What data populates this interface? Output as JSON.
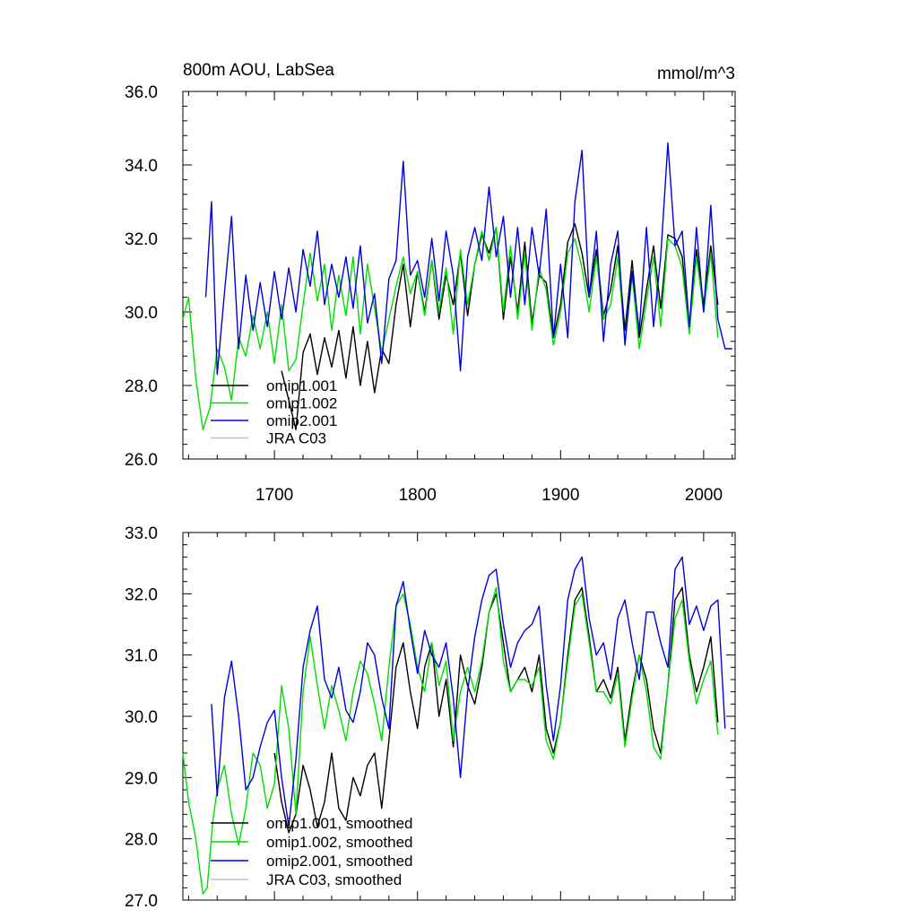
{
  "chart_data": [
    {
      "type": "line",
      "title": "800m AOU, LabSea",
      "units": "mmol/m^3",
      "xlim": [
        1636,
        2022
      ],
      "ylim": [
        26.0,
        36.0
      ],
      "xticks": [
        1700,
        1800,
        1900,
        2000
      ],
      "xtick_labels": [
        "1700",
        "1800",
        "1900",
        "2000"
      ],
      "yticks": [
        26,
        28,
        30,
        32,
        34,
        36
      ],
      "ytick_labels": [
        "26.0",
        "28.0",
        "30.0",
        "32.0",
        "34.0",
        "36.0"
      ],
      "legend": [
        "omip1.001",
        "omip1.002",
        "omip2.001",
        "JRA C03"
      ],
      "series": [
        {
          "name": "omip1.001",
          "color": "#000000",
          "x": [
            1652,
            1660,
            1670,
            1680,
            1690,
            1700,
            1705,
            1710,
            1715,
            1720,
            1725,
            1730,
            1735,
            1740,
            1745,
            1750,
            1755,
            1760,
            1765,
            1770,
            1775,
            1780,
            1785,
            1790,
            1795,
            1800,
            1805,
            1810,
            1815,
            1820,
            1825,
            1830,
            1835,
            1840,
            1845,
            1850,
            1855,
            1860,
            1865,
            1870,
            1875,
            1880,
            1885,
            1890,
            1895,
            1900,
            1905,
            1910,
            1915,
            1920,
            1925,
            1930,
            1935,
            1940,
            1945,
            1950,
            1955,
            1960,
            1965,
            1970,
            1975,
            1980,
            1985,
            1990,
            1995,
            2000,
            2005,
            2010
          ],
          "values": [
            null,
            null,
            null,
            null,
            null,
            null,
            28.4,
            27.6,
            26.8,
            28.9,
            29.4,
            28.3,
            29.3,
            28.5,
            29.5,
            28.2,
            29.6,
            28.0,
            29.2,
            27.8,
            29.0,
            28.6,
            30.2,
            31.3,
            29.6,
            31.1,
            30.0,
            31.4,
            29.8,
            31.0,
            30.2,
            31.6,
            29.9,
            31.3,
            32.1,
            31.6,
            32.3,
            29.8,
            31.5,
            30.0,
            31.9,
            29.7,
            31.0,
            30.8,
            29.3,
            30.2,
            31.9,
            32.4,
            31.6,
            30.4,
            31.7,
            29.9,
            30.6,
            31.8,
            29.5,
            31.4,
            29.3,
            30.6,
            31.8,
            30.1,
            32.1,
            32.0,
            31.5,
            29.5,
            31.7,
            30.2,
            31.8,
            30.2
          ]
        },
        {
          "name": "omip1.002",
          "color": "#00dd00",
          "x": [
            1636,
            1640,
            1645,
            1650,
            1655,
            1660,
            1665,
            1670,
            1675,
            1680,
            1685,
            1690,
            1695,
            1700,
            1705,
            1710,
            1715,
            1720,
            1725,
            1730,
            1735,
            1740,
            1745,
            1750,
            1755,
            1760,
            1765,
            1770,
            1775,
            1780,
            1785,
            1790,
            1795,
            1800,
            1805,
            1810,
            1815,
            1820,
            1825,
            1830,
            1835,
            1840,
            1845,
            1850,
            1855,
            1860,
            1865,
            1870,
            1875,
            1880,
            1885,
            1890,
            1895,
            1900,
            1905,
            1910,
            1915,
            1920,
            1925,
            1930,
            1935,
            1940,
            1945,
            1950,
            1955,
            1960,
            1965,
            1970,
            1975,
            1980,
            1985,
            1990,
            1995,
            2000,
            2005,
            2010
          ],
          "values": [
            29.8,
            30.4,
            28.2,
            26.8,
            27.4,
            29.0,
            28.5,
            27.6,
            29.3,
            28.8,
            29.9,
            29.0,
            30.0,
            28.6,
            30.2,
            28.4,
            28.7,
            30.2,
            31.6,
            30.3,
            31.3,
            29.5,
            31.0,
            29.9,
            31.5,
            29.4,
            31.3,
            30.1,
            28.9,
            29.8,
            30.7,
            31.5,
            30.5,
            31.1,
            29.9,
            31.4,
            30.0,
            31.2,
            29.4,
            31.7,
            30.2,
            31.3,
            32.2,
            31.4,
            32.3,
            30.0,
            31.8,
            29.8,
            31.6,
            29.5,
            31.2,
            30.6,
            29.1,
            30.0,
            31.6,
            32.0,
            31.2,
            30.0,
            31.5,
            29.8,
            30.2,
            31.5,
            29.2,
            31.0,
            29.0,
            30.3,
            31.5,
            29.6,
            32.0,
            31.8,
            31.2,
            29.4,
            31.5,
            30.0,
            31.6,
            29.3
          ]
        },
        {
          "name": "omip2.001",
          "color": "#0000dd",
          "x": [
            1652,
            1656,
            1660,
            1665,
            1670,
            1675,
            1680,
            1685,
            1690,
            1695,
            1700,
            1705,
            1710,
            1715,
            1720,
            1725,
            1730,
            1735,
            1740,
            1745,
            1750,
            1755,
            1760,
            1765,
            1770,
            1775,
            1780,
            1785,
            1790,
            1795,
            1800,
            1805,
            1810,
            1815,
            1820,
            1825,
            1830,
            1835,
            1840,
            1845,
            1850,
            1855,
            1860,
            1865,
            1870,
            1875,
            1880,
            1885,
            1890,
            1895,
            1900,
            1905,
            1910,
            1915,
            1920,
            1925,
            1930,
            1935,
            1940,
            1945,
            1950,
            1955,
            1960,
            1965,
            1970,
            1975,
            1980,
            1985,
            1990,
            1995,
            2000,
            2005,
            2010,
            2015,
            2020
          ],
          "values": [
            30.4,
            33.0,
            28.3,
            30.5,
            32.6,
            29.0,
            31.0,
            29.5,
            30.8,
            29.6,
            31.1,
            29.8,
            31.2,
            30.0,
            31.7,
            30.7,
            32.2,
            30.2,
            31.3,
            30.4,
            31.5,
            30.1,
            31.8,
            29.7,
            30.5,
            28.6,
            30.9,
            31.4,
            34.1,
            31.0,
            31.4,
            30.4,
            32.0,
            30.3,
            32.2,
            31.0,
            28.4,
            31.5,
            32.3,
            31.4,
            33.4,
            31.5,
            32.6,
            30.4,
            32.3,
            30.2,
            32.3,
            31.0,
            32.8,
            29.3,
            31.3,
            29.3,
            33.0,
            34.4,
            30.4,
            32.2,
            29.2,
            31.3,
            32.2,
            29.1,
            31.1,
            29.5,
            32.3,
            29.6,
            31.5,
            34.6,
            31.8,
            32.2,
            29.6,
            32.3,
            30.0,
            32.9,
            29.8,
            29.0,
            29.0
          ]
        }
      ]
    },
    {
      "type": "line",
      "title": "",
      "xlim": [
        1636,
        2022
      ],
      "ylim": [
        27.0,
        33.0
      ],
      "yticks": [
        27,
        28,
        29,
        30,
        31,
        32,
        33
      ],
      "ytick_labels": [
        "27.0",
        "28.0",
        "29.0",
        "30.0",
        "31.0",
        "32.0",
        "33.0"
      ],
      "legend": [
        "omip1.001, smoothed",
        "omip1.002, smoothed",
        "omip2.001, smoothed",
        "JRA C03, smoothed"
      ],
      "series": [
        {
          "name": "omip1.001, smoothed",
          "color": "#000000",
          "x": [
            1700,
            1705,
            1710,
            1715,
            1720,
            1725,
            1730,
            1735,
            1740,
            1745,
            1750,
            1755,
            1760,
            1765,
            1770,
            1775,
            1780,
            1785,
            1790,
            1795,
            1800,
            1805,
            1810,
            1815,
            1820,
            1825,
            1830,
            1835,
            1840,
            1845,
            1850,
            1855,
            1860,
            1865,
            1870,
            1875,
            1880,
            1885,
            1890,
            1895,
            1900,
            1905,
            1910,
            1915,
            1920,
            1925,
            1930,
            1935,
            1940,
            1945,
            1950,
            1955,
            1960,
            1965,
            1970,
            1975,
            1980,
            1985,
            1990,
            1995,
            2000,
            2005,
            2010
          ],
          "values": [
            29.4,
            28.6,
            28.1,
            28.4,
            29.2,
            28.8,
            28.2,
            28.6,
            29.4,
            28.5,
            28.3,
            29.0,
            28.7,
            29.2,
            29.4,
            28.5,
            29.6,
            30.8,
            31.2,
            30.4,
            29.8,
            30.8,
            31.2,
            30.0,
            30.6,
            29.5,
            31.0,
            30.5,
            30.2,
            30.8,
            31.7,
            32.0,
            31.2,
            30.4,
            30.6,
            30.8,
            30.4,
            31.0,
            29.8,
            29.4,
            29.9,
            31.0,
            31.9,
            32.1,
            31.3,
            30.4,
            30.6,
            30.3,
            30.8,
            29.6,
            30.4,
            31.0,
            30.6,
            29.8,
            29.4,
            30.5,
            31.9,
            32.1,
            31.0,
            30.4,
            30.8,
            31.3,
            29.9
          ]
        },
        {
          "name": "omip1.002, smoothed",
          "color": "#00dd00",
          "x": [
            1636,
            1640,
            1645,
            1650,
            1653,
            1657,
            1660,
            1665,
            1670,
            1675,
            1680,
            1685,
            1690,
            1695,
            1700,
            1705,
            1710,
            1715,
            1720,
            1725,
            1730,
            1735,
            1740,
            1745,
            1750,
            1755,
            1760,
            1765,
            1770,
            1775,
            1780,
            1785,
            1790,
            1795,
            1800,
            1805,
            1810,
            1815,
            1820,
            1825,
            1830,
            1835,
            1840,
            1845,
            1850,
            1855,
            1860,
            1865,
            1870,
            1875,
            1880,
            1885,
            1890,
            1895,
            1900,
            1905,
            1910,
            1915,
            1920,
            1925,
            1930,
            1935,
            1940,
            1945,
            1950,
            1955,
            1960,
            1965,
            1970,
            1975,
            1980,
            1985,
            1990,
            1995,
            2000,
            2005,
            2010
          ],
          "values": [
            29.4,
            28.6,
            28.0,
            27.1,
            27.2,
            28.3,
            28.8,
            29.2,
            28.4,
            27.9,
            28.5,
            29.4,
            29.2,
            28.5,
            28.9,
            30.5,
            29.8,
            28.4,
            30.4,
            31.3,
            30.5,
            29.8,
            30.5,
            30.1,
            29.6,
            30.4,
            30.9,
            30.7,
            30.2,
            29.6,
            30.8,
            31.8,
            32.0,
            31.5,
            30.8,
            30.4,
            31.2,
            30.5,
            30.9,
            29.6,
            30.4,
            30.8,
            30.4,
            30.9,
            31.7,
            32.1,
            30.9,
            30.4,
            30.6,
            30.6,
            30.5,
            30.8,
            29.6,
            29.3,
            29.9,
            30.9,
            31.8,
            32.0,
            31.2,
            30.4,
            30.4,
            30.2,
            30.7,
            29.5,
            30.3,
            31.0,
            30.4,
            29.5,
            29.3,
            30.5,
            31.6,
            31.9,
            30.9,
            30.2,
            30.6,
            30.9,
            29.7
          ]
        },
        {
          "name": "omip2.001, smoothed",
          "color": "#0000dd",
          "x": [
            1656,
            1660,
            1665,
            1670,
            1675,
            1680,
            1685,
            1690,
            1695,
            1700,
            1705,
            1710,
            1715,
            1720,
            1725,
            1730,
            1735,
            1740,
            1745,
            1750,
            1755,
            1760,
            1765,
            1770,
            1775,
            1780,
            1785,
            1790,
            1795,
            1800,
            1805,
            1810,
            1815,
            1820,
            1825,
            1830,
            1835,
            1840,
            1845,
            1850,
            1855,
            1860,
            1865,
            1870,
            1875,
            1880,
            1885,
            1890,
            1895,
            1900,
            1905,
            1910,
            1915,
            1920,
            1925,
            1930,
            1935,
            1940,
            1945,
            1950,
            1955,
            1960,
            1965,
            1970,
            1975,
            1980,
            1985,
            1990,
            1995,
            2000,
            2005,
            2010,
            2015
          ],
          "values": [
            30.2,
            28.7,
            30.3,
            30.9,
            30.0,
            28.8,
            29.0,
            29.5,
            29.9,
            30.1,
            29.0,
            28.2,
            29.3,
            30.8,
            31.4,
            31.8,
            30.6,
            30.3,
            30.8,
            30.1,
            29.9,
            30.4,
            31.2,
            31.0,
            30.3,
            29.8,
            31.8,
            32.2,
            31.4,
            30.7,
            31.4,
            31.0,
            30.8,
            31.2,
            30.3,
            29.0,
            30.4,
            31.3,
            31.9,
            32.3,
            32.4,
            31.5,
            30.8,
            31.2,
            31.4,
            31.5,
            31.8,
            30.5,
            29.6,
            30.5,
            31.9,
            32.4,
            32.6,
            31.6,
            31.0,
            31.2,
            30.6,
            31.6,
            31.9,
            31.2,
            30.6,
            31.7,
            31.7,
            31.2,
            30.8,
            32.4,
            32.6,
            31.5,
            31.8,
            31.4,
            31.8,
            31.9,
            29.8
          ]
        }
      ]
    }
  ]
}
